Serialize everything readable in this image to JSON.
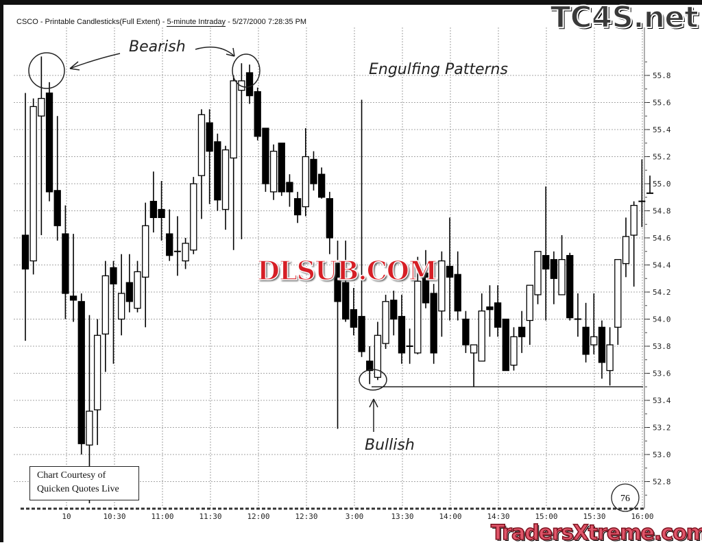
{
  "header": {
    "title_prefix": "CSCO - Printable Candlesticks(Full Extent) - ",
    "title_interval": "5-minute Intraday",
    "title_suffix": " - 5/27/2000 7:28:35 PM"
  },
  "annotations": {
    "bearish": "Bearish",
    "engulfing": "Engulfing Patterns",
    "bullish": "Bullish",
    "count": "76"
  },
  "courtesy": {
    "line1": "Chart Courtesy of",
    "line2": "Quicken Quotes Live"
  },
  "watermarks": {
    "tc4s": "TC4S.net",
    "dlsub": "DLSUB.COM",
    "tradersxtreme": "TradersXtreme.com"
  },
  "colors": {
    "up_fill": "#ffffff",
    "down_fill": "#000000",
    "grid": "#888888",
    "dlsub_red": "#d61f26",
    "tradersxtreme_pink": "#e0566a"
  },
  "chart_data": {
    "type": "candlestick",
    "title": "CSCO - Printable Candlesticks(Full Extent) - 5-minute Intraday - 5/27/2000 7:28:35 PM",
    "interval": "5-minute",
    "ylim": [
      52.6,
      55.95
    ],
    "yticks": [
      "55.8",
      "55.6",
      "55.4",
      "55.2",
      "55.0",
      "54.8",
      "54.6",
      "54.4",
      "54.2",
      "54.0",
      "53.8",
      "53.6",
      "53.4",
      "53.2",
      "53.0",
      "52.8"
    ],
    "xticks": [
      "10",
      "10:30",
      "11:00",
      "11:30",
      "12:00",
      "12:30",
      "3:00",
      "13:30",
      "14:00",
      "14:30",
      "15:00",
      "15:30",
      "16:00"
    ],
    "grid": true,
    "support_line": 53.5,
    "candles_ohlc": [
      [
        54.62,
        55.67,
        53.84,
        54.37
      ],
      [
        54.43,
        55.63,
        54.33,
        55.57
      ],
      [
        55.5,
        55.94,
        54.62,
        55.63
      ],
      [
        55.67,
        55.75,
        54.87,
        54.94
      ],
      [
        54.95,
        55.5,
        54.58,
        54.69
      ],
      [
        54.63,
        54.84,
        54.0,
        54.19
      ],
      [
        54.17,
        54.63,
        53.98,
        54.14
      ],
      [
        54.13,
        54.19,
        53.0,
        53.08
      ],
      [
        53.07,
        54.03,
        52.64,
        53.32
      ],
      [
        53.33,
        54.0,
        53.07,
        53.88
      ],
      [
        53.89,
        54.43,
        53.61,
        54.32
      ],
      [
        54.38,
        54.43,
        53.67,
        54.26
      ],
      [
        54.0,
        54.48,
        53.88,
        54.19
      ],
      [
        54.27,
        54.48,
        54.05,
        54.13
      ],
      [
        54.08,
        54.43,
        54.05,
        54.35
      ],
      [
        54.31,
        54.86,
        53.94,
        54.69
      ],
      [
        54.87,
        55.09,
        54.64,
        54.75
      ],
      [
        54.81,
        55.02,
        54.58,
        54.75
      ],
      [
        54.63,
        54.81,
        54.43,
        54.47
      ],
      [
        54.5,
        54.76,
        54.32,
        54.5
      ],
      [
        54.43,
        54.6,
        54.37,
        54.56
      ],
      [
        54.51,
        55.05,
        54.48,
        55.0
      ],
      [
        55.06,
        55.55,
        54.74,
        55.51
      ],
      [
        55.45,
        55.55,
        54.85,
        55.24
      ],
      [
        55.31,
        55.37,
        54.8,
        54.88
      ],
      [
        54.81,
        55.28,
        54.66,
        55.25
      ],
      [
        55.19,
        55.8,
        54.51,
        55.76
      ],
      [
        55.69,
        55.89,
        54.59,
        55.76
      ],
      [
        55.82,
        55.88,
        55.59,
        55.65
      ],
      [
        55.68,
        55.71,
        55.32,
        55.35
      ],
      [
        55.41,
        55.41,
        54.94,
        55.0
      ],
      [
        54.94,
        55.29,
        54.88,
        55.24
      ],
      [
        55.3,
        55.3,
        54.91,
        54.94
      ],
      [
        55.01,
        55.07,
        54.83,
        54.94
      ],
      [
        54.89,
        54.94,
        54.71,
        54.77
      ],
      [
        54.83,
        55.41,
        54.76,
        55.2
      ],
      [
        55.18,
        55.24,
        54.95,
        55.0
      ],
      [
        55.07,
        55.12,
        54.89,
        54.9
      ],
      [
        54.89,
        54.94,
        54.48,
        54.6
      ],
      [
        54.43,
        54.58,
        53.19,
        54.13
      ],
      [
        54.27,
        54.58,
        53.98,
        54.0
      ],
      [
        54.07,
        54.23,
        53.88,
        53.94
      ],
      [
        54.02,
        55.62,
        53.72,
        53.76
      ],
      [
        53.69,
        53.8,
        53.52,
        53.62
      ],
      [
        53.57,
        53.98,
        53.55,
        53.88
      ],
      [
        53.82,
        54.18,
        53.78,
        54.13
      ],
      [
        54.14,
        54.21,
        53.88,
        54.0
      ],
      [
        54.02,
        54.18,
        53.67,
        53.75
      ],
      [
        53.8,
        53.93,
        53.67,
        53.8
      ],
      [
        53.75,
        54.46,
        53.74,
        54.28
      ],
      [
        54.34,
        54.51,
        54.08,
        54.12
      ],
      [
        54.19,
        54.26,
        53.67,
        53.75
      ],
      [
        54.06,
        54.5,
        53.87,
        54.43
      ],
      [
        54.39,
        54.75,
        53.99,
        54.31
      ],
      [
        54.33,
        54.5,
        53.99,
        54.06
      ],
      [
        54.0,
        54.06,
        53.75,
        53.81
      ],
      [
        53.75,
        53.81,
        53.5,
        53.81
      ],
      [
        53.69,
        54.19,
        53.69,
        54.06
      ],
      [
        54.09,
        54.25,
        53.87,
        54.07
      ],
      [
        54.12,
        54.25,
        53.87,
        53.94
      ],
      [
        54.0,
        54.0,
        53.62,
        53.62
      ],
      [
        53.66,
        53.94,
        53.62,
        53.87
      ],
      [
        53.94,
        54.06,
        53.75,
        53.87
      ],
      [
        53.99,
        54.25,
        53.81,
        54.25
      ],
      [
        54.18,
        54.5,
        54.11,
        54.5
      ],
      [
        54.47,
        54.98,
        53.99,
        54.37
      ],
      [
        54.44,
        54.5,
        54.11,
        54.3
      ],
      [
        54.18,
        54.62,
        54.18,
        54.44
      ],
      [
        54.47,
        54.49,
        53.99,
        54.01
      ],
      [
        54.0,
        54.19,
        53.87,
        54.0
      ],
      [
        53.94,
        54.12,
        53.68,
        53.74
      ],
      [
        53.81,
        54.19,
        53.74,
        53.87
      ],
      [
        53.94,
        53.99,
        53.56,
        53.68
      ],
      [
        53.62,
        53.94,
        53.51,
        53.81
      ],
      [
        53.94,
        54.44,
        53.81,
        54.44
      ],
      [
        54.41,
        54.75,
        54.31,
        54.61
      ],
      [
        54.62,
        54.87,
        54.24,
        54.84
      ],
      [
        54.87,
        55.18,
        54.68,
        54.87
      ],
      [
        54.93,
        55.06,
        54.93,
        54.93
      ]
    ]
  }
}
